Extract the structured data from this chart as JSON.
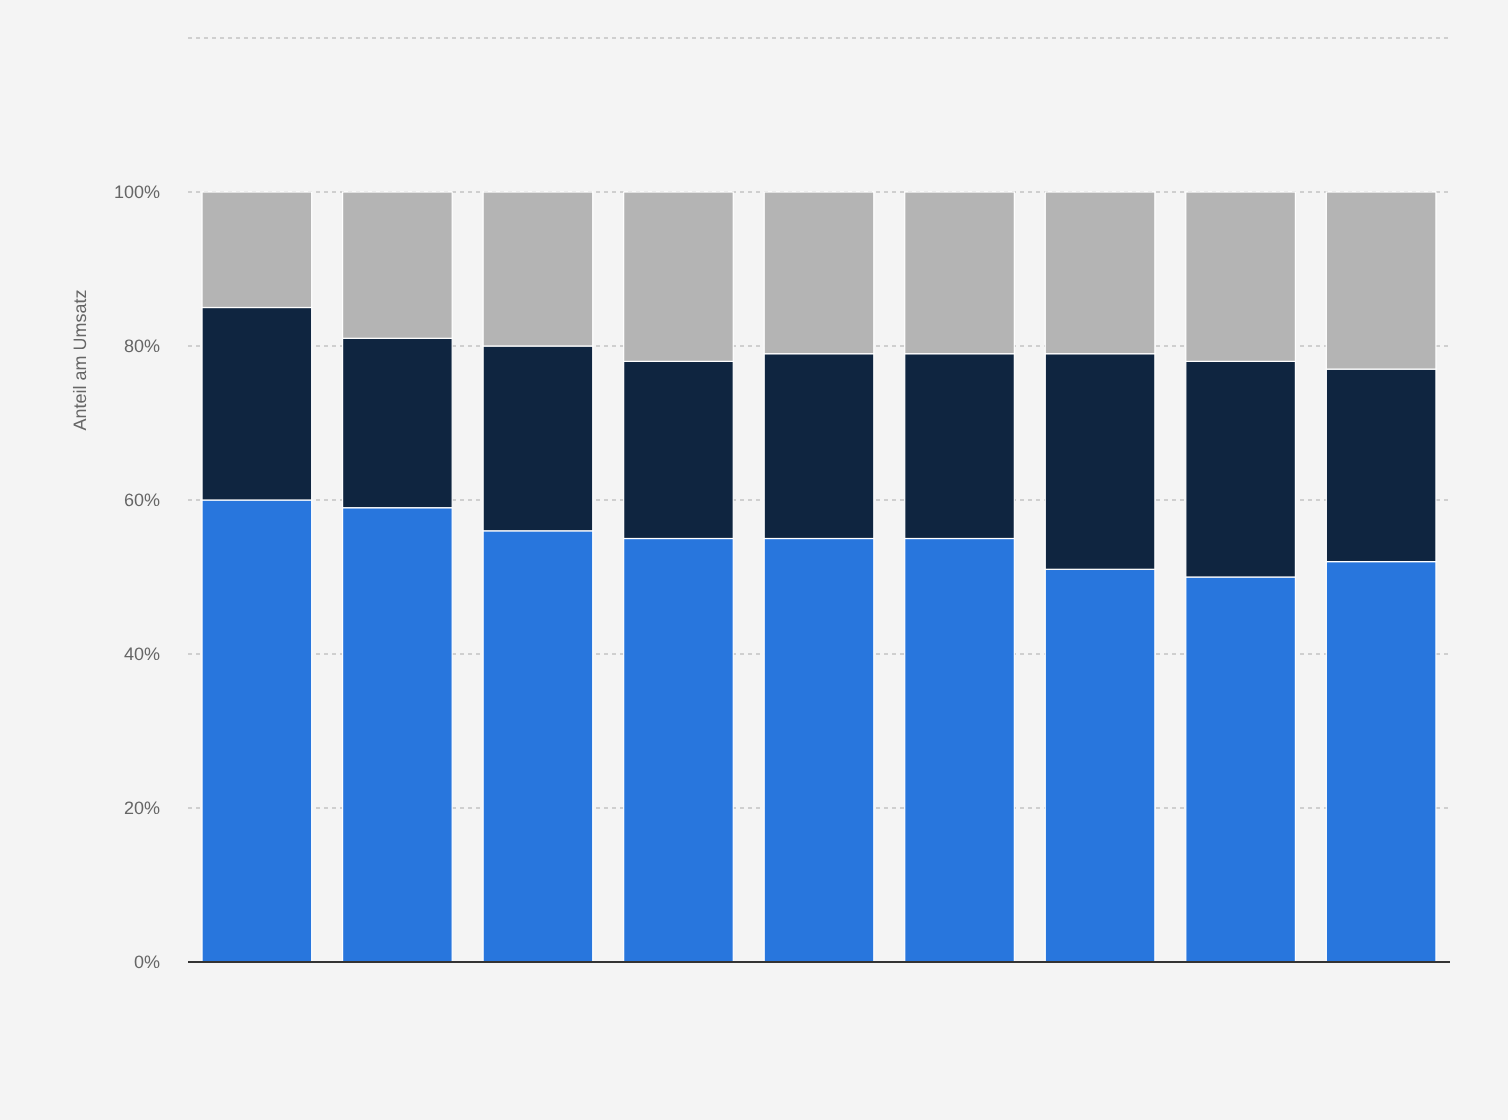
{
  "chart_data": {
    "type": "bar",
    "stacked": true,
    "ylabel": "Anteil am Umsatz",
    "categories": [
      null,
      null,
      null,
      null,
      null,
      null,
      null,
      null,
      null
    ],
    "series": [
      {
        "color": "#2876dd",
        "values": [
          60,
          59,
          56,
          55,
          55,
          55,
          51,
          50,
          52
        ]
      },
      {
        "color": "#0f2540",
        "values": [
          25,
          22,
          24,
          23,
          24,
          24,
          28,
          28,
          25
        ]
      },
      {
        "color": "#b4b4b4",
        "values": [
          15,
          19,
          20,
          22,
          21,
          21,
          21,
          22,
          23
        ]
      }
    ],
    "ylim": [
      0,
      120
    ],
    "yticks": [
      {
        "value": 0,
        "label": "0%"
      },
      {
        "value": 20,
        "label": "20%"
      },
      {
        "value": 40,
        "label": "40%"
      },
      {
        "value": 60,
        "label": "60%"
      },
      {
        "value": 80,
        "label": "80%"
      },
      {
        "value": 100,
        "label": "100%"
      },
      {
        "value": 120,
        "label": null
      }
    ],
    "grid": "y"
  }
}
